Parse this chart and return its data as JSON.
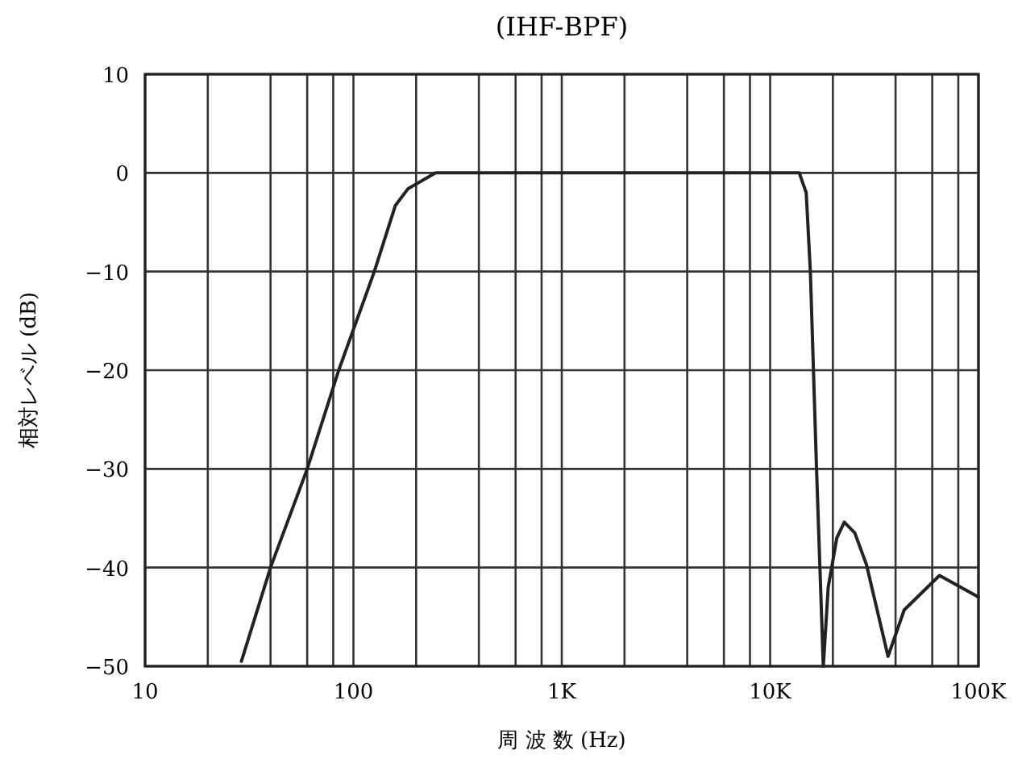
{
  "chart_data": {
    "type": "line",
    "title": "(IHF-BPF)",
    "xlabel": "周 波 数 (Hz)",
    "ylabel": "相対レベル (dB)",
    "log": "x",
    "grid": true,
    "marker": "none",
    "line_style": "solid",
    "xlim": [
      10,
      100000
    ],
    "ylim": [
      -50,
      10
    ],
    "xticks": [
      {
        "value": 10,
        "label": "10"
      },
      {
        "value": 20,
        "label": null
      },
      {
        "value": 40,
        "label": null
      },
      {
        "value": 60,
        "label": null
      },
      {
        "value": 80,
        "label": null
      },
      {
        "value": 100,
        "label": "100"
      },
      {
        "value": 200,
        "label": null
      },
      {
        "value": 400,
        "label": null
      },
      {
        "value": 600,
        "label": null
      },
      {
        "value": 800,
        "label": null
      },
      {
        "value": 1000,
        "label": "1K"
      },
      {
        "value": 2000,
        "label": null
      },
      {
        "value": 4000,
        "label": null
      },
      {
        "value": 6000,
        "label": null
      },
      {
        "value": 8000,
        "label": null
      },
      {
        "value": 10000,
        "label": "10K"
      },
      {
        "value": 20000,
        "label": null
      },
      {
        "value": 40000,
        "label": null
      },
      {
        "value": 60000,
        "label": null
      },
      {
        "value": 80000,
        "label": null
      },
      {
        "value": 100000,
        "label": "100K"
      }
    ],
    "yticks": [
      10,
      {
        "value": 0,
        "label": "0"
      },
      {
        "value": -10,
        "label": "−10"
      },
      {
        "value": -20,
        "label": "−20"
      },
      {
        "value": -30,
        "label": "−30"
      },
      {
        "value": -40,
        "label": "−40"
      },
      {
        "value": -50,
        "label": "−50"
      }
    ],
    "series": [
      {
        "color": "#222222",
        "x": [
          29,
          40,
          60,
          85,
          126,
          159,
          183,
          248,
          1000,
          13800,
          14900,
          15600,
          16700,
          18000,
          19000,
          20900,
          22700,
          25500,
          29000,
          36800,
          44000,
          65000,
          100000
        ],
        "values": [
          -49.5,
          -40,
          -30,
          -20,
          -10,
          -3.3,
          -1.6,
          0,
          0,
          0,
          -2,
          -10,
          -30,
          -50,
          -42,
          -37,
          -35.4,
          -36.5,
          -39.7,
          -49,
          -44.3,
          -40.8,
          -43
        ]
      }
    ]
  }
}
